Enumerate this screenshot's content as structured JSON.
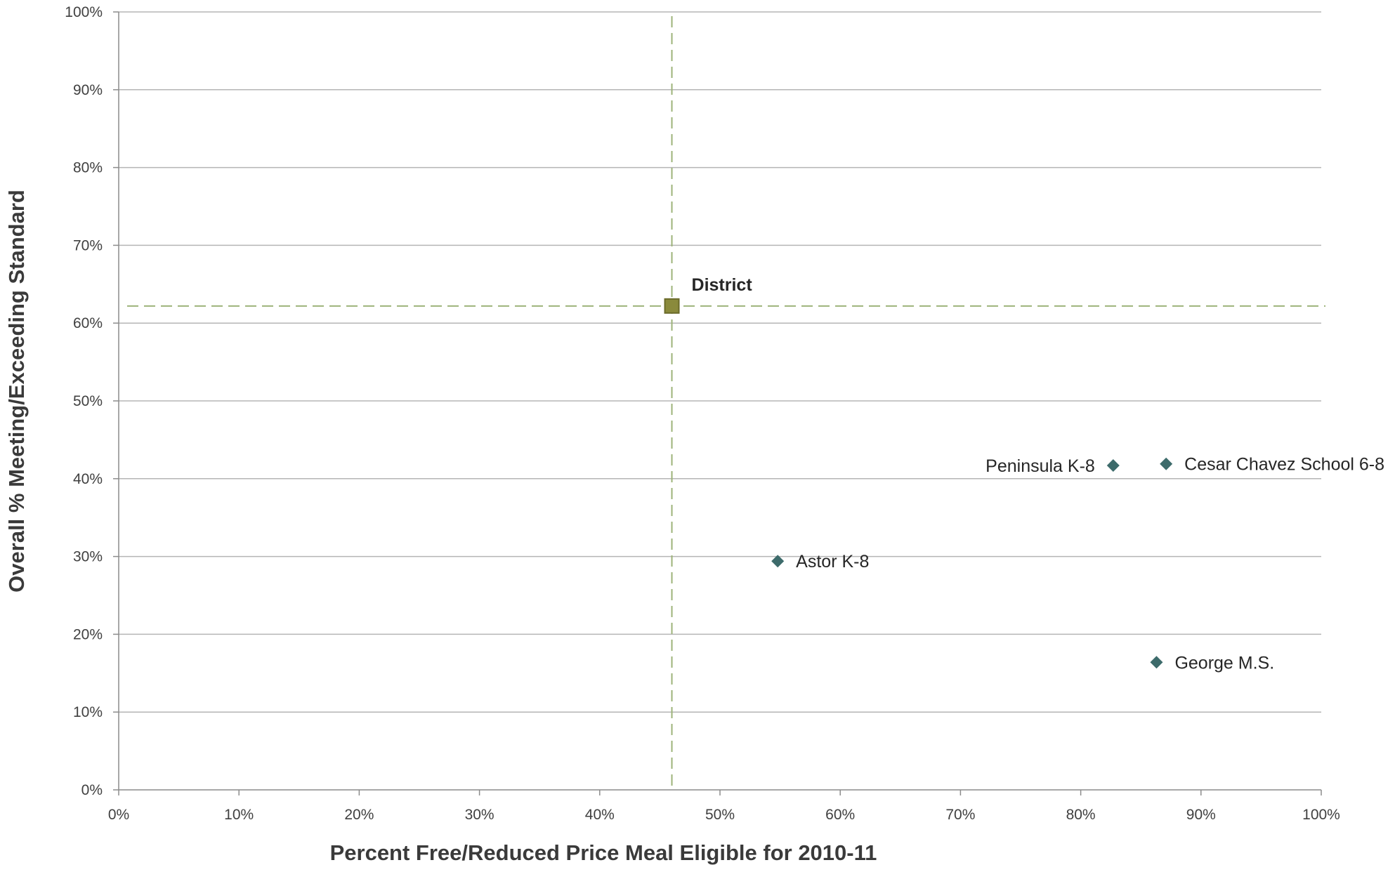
{
  "chart_data": {
    "type": "scatter",
    "xlabel": "Percent Free/Reduced Price Meal Eligible for 2010-11",
    "ylabel": "Overall % Meeting/Exceeding Standard",
    "xlim": [
      0,
      100
    ],
    "ylim": [
      0,
      100
    ],
    "x_ticks": [
      "0%",
      "10%",
      "20%",
      "30%",
      "40%",
      "50%",
      "60%",
      "70%",
      "80%",
      "90%",
      "100%"
    ],
    "y_ticks": [
      "0%",
      "10%",
      "20%",
      "30%",
      "40%",
      "50%",
      "60%",
      "70%",
      "80%",
      "90%",
      "100%"
    ],
    "grid": "horizontal",
    "points": [
      {
        "label": "District",
        "x": 46,
        "y": 62.2,
        "marker": "square",
        "color": "#8a8a3c",
        "emphasis": true
      },
      {
        "label": "Astor K-8",
        "x": 54.8,
        "y": 29.4,
        "marker": "diamond",
        "color": "#3d6b6b"
      },
      {
        "label": "Peninsula K-8",
        "x": 82.7,
        "y": 41.7,
        "marker": "diamond",
        "color": "#3d6b6b"
      },
      {
        "label": "Cesar Chavez School 6-8",
        "x": 87.1,
        "y": 41.9,
        "marker": "diamond",
        "color": "#3d6b6b"
      },
      {
        "label": "George M.S.",
        "x": 86.3,
        "y": 16.4,
        "marker": "diamond",
        "color": "#3d6b6b"
      }
    ],
    "reference_lines": {
      "x": 46,
      "y": 62.2,
      "style": "dashed",
      "color": "#9db37a"
    },
    "colors": {
      "grid": "#b5b5b5",
      "axis": "#8c8c8c",
      "marker": "#3d6b6b",
      "district_fill": "#8a8a3c",
      "district_border": "#6b6b2a",
      "reference": "#9db37a"
    }
  }
}
